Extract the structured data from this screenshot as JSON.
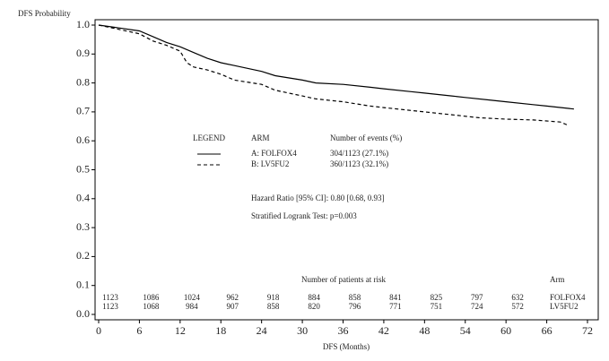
{
  "chart_data": {
    "type": "line",
    "y_label": "DFS Probability",
    "x_label": "DFS (Months)",
    "xlim": [
      0,
      72
    ],
    "xticks": [
      0,
      6,
      12,
      18,
      24,
      30,
      36,
      42,
      48,
      54,
      60,
      66,
      72
    ],
    "ylim": [
      0,
      1
    ],
    "yticks": [
      {
        "value": 0,
        "label": "0.0"
      },
      0.1,
      0.2,
      0.3,
      0.4,
      0.5,
      0.6,
      0.7,
      0.8,
      0.9,
      {
        "value": 1,
        "label": "1.0"
      }
    ],
    "legend": {
      "title": "LEGEND",
      "arm_header": "ARM",
      "events_header": "Number of events (%)",
      "events": [
        "304/1123  (27.1%)",
        "360/1123  (32.1%)"
      ]
    },
    "annotations": {
      "hazard": "Hazard Ratio [95% CI]: 0.80 [0.68, 0.93]",
      "logrank": "Stratified Logrank Test:   p=0.003"
    },
    "risk_table": {
      "title": "Number of patients at risk",
      "arm_header": "Arm",
      "rows": [
        {
          "label": "FOLFOX4",
          "counts": [
            1123,
            1086,
            1024,
            962,
            918,
            884,
            858,
            841,
            825,
            797,
            632
          ]
        },
        {
          "label": "LV5FU2",
          "counts": [
            1123,
            1068,
            984,
            907,
            858,
            820,
            796,
            771,
            751,
            724,
            572
          ]
        }
      ]
    },
    "series": [
      {
        "name": "A: FOLFOX4",
        "color": "#000000",
        "dash": "none",
        "x": [
          0,
          3,
          6,
          8,
          10,
          12,
          14,
          16,
          18,
          20,
          22,
          24,
          26,
          30,
          32,
          36,
          40,
          42,
          46,
          48,
          52,
          54,
          58,
          60,
          64,
          66,
          70
        ],
        "values": [
          1.0,
          0.99,
          0.98,
          0.96,
          0.94,
          0.925,
          0.905,
          0.885,
          0.87,
          0.86,
          0.85,
          0.84,
          0.825,
          0.81,
          0.8,
          0.795,
          0.785,
          0.78,
          0.77,
          0.765,
          0.755,
          0.75,
          0.74,
          0.735,
          0.725,
          0.72,
          0.71
        ]
      },
      {
        "name": "B: LV5FU2",
        "color": "#000000",
        "dash": "4,3",
        "x": [
          0,
          3,
          6,
          8,
          10,
          12,
          13,
          14,
          16,
          18,
          20,
          24,
          26,
          28,
          30,
          32,
          36,
          40,
          42,
          46,
          48,
          52,
          56,
          60,
          64,
          68,
          69
        ],
        "values": [
          1.0,
          0.985,
          0.97,
          0.945,
          0.93,
          0.91,
          0.87,
          0.855,
          0.845,
          0.83,
          0.81,
          0.795,
          0.775,
          0.765,
          0.755,
          0.745,
          0.735,
          0.72,
          0.715,
          0.705,
          0.7,
          0.69,
          0.68,
          0.675,
          0.672,
          0.665,
          0.655
        ]
      }
    ]
  }
}
